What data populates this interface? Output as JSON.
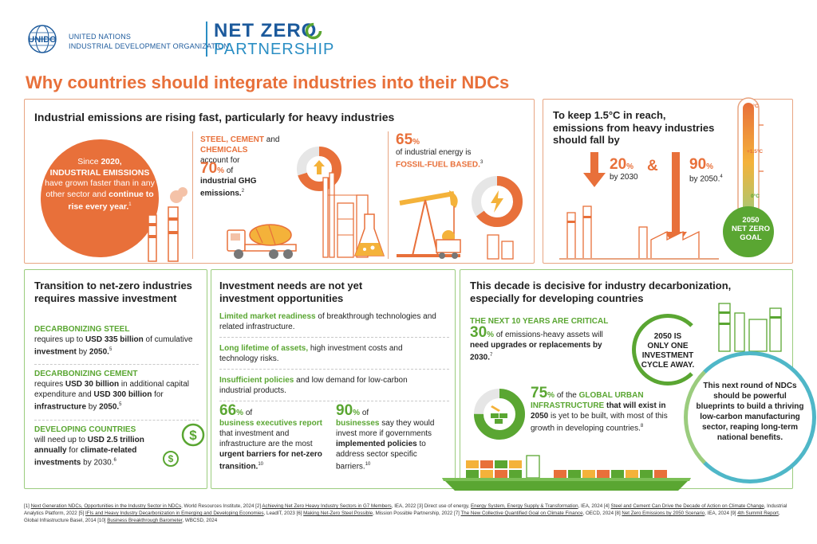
{
  "header": {
    "org_line1": "UNITED NATIONS",
    "org_line2": "INDUSTRIAL DEVELOPMENT ORGANIZATION",
    "unido_logo_text": "UNIDO",
    "partner_line1": "NET ZERO",
    "partner_line2": "PARTNERSHIP",
    "title": "Why countries should integrate industries into their NDCs"
  },
  "panel_emissions": {
    "title": "Industrial emissions are rising fast, particularly for heavy industries",
    "circle": {
      "t1": "Since ",
      "t2": "2020,",
      "t3": "INDUSTRIAL EMISSIONS",
      "t4": " have grown faster than in any other sector and ",
      "t5": "continue to rise every year.",
      "ref": "1"
    },
    "steel": {
      "s1": "STEEL, CEMENT",
      "s2": " and ",
      "s3": "CHEMICALS",
      "s4": "account for"
    },
    "seventy": {
      "num": "70",
      "pct": "%",
      "t1": " of",
      "t2": "industrial GHG emissions.",
      "ref": "2"
    },
    "sixtyfive": {
      "num": "65",
      "pct": "%",
      "t1": "of industrial energy is",
      "t2": "FOSSIL-FUEL BASED.",
      "ref": "3"
    }
  },
  "panel_fall": {
    "title_l1": "To keep 1.5°C in reach,",
    "title_l2": "emissions from heavy industries",
    "title_l3": "should fall by",
    "first": {
      "num": "20",
      "pct": "%",
      "by": "by 2030"
    },
    "amp": "&",
    "second": {
      "num": "90",
      "pct": "%",
      "by": "by 2050.",
      "ref": "4"
    },
    "thermo": {
      "label_top": "+3°C",
      "label_mid": "+1.5°C",
      "label_zero": "0°C",
      "goal_l1": "2050",
      "goal_l2": "NET ZERO",
      "goal_l3": "GOAL"
    }
  },
  "panel_transition": {
    "title": "Transition to net-zero industries requires massive investment",
    "steel": {
      "head": "DECARBONIZING STEEL",
      "t1": "requires up to ",
      "t2": "USD 335 billion",
      "t3": " of cumulative ",
      "t4": "investment",
      "t5": " by ",
      "t6": "2050.",
      "ref": "5"
    },
    "cement": {
      "head": "DECARBONIZING CEMENT",
      "t1": "requires ",
      "t2": "USD 30 billion",
      "t3": " in additional capital expenditure and ",
      "t4": "USD 300 billion",
      "t5": " for ",
      "t6": "infrastructure",
      "t7": " by ",
      "t8": "2050.",
      "ref": "5"
    },
    "developing": {
      "head": "DEVELOPING COUNTRIES",
      "t1": "will need up to ",
      "t2": "USD 2.5 trillion annually",
      "t3": " for ",
      "t4": "climate-related investments",
      "t5": " by 2030.",
      "ref": "6"
    }
  },
  "panel_investment": {
    "title_l1": "Investment needs are not yet",
    "title_l2": "investment opportunities",
    "item1": {
      "head": "Limited market readiness",
      "rest": " of breakthrough technologies and related infrastructure."
    },
    "item2": {
      "head": "Long lifetime of assets,",
      "rest": " high investment costs and technology risks."
    },
    "item3": {
      "head": "Insufficient policies",
      "rest": " and low demand for low-carbon industrial products."
    },
    "stat1": {
      "num": "66",
      "pct": "%",
      "t1": " of",
      "t2": "business executives report",
      "t3": " that investment and infrastructure are the most ",
      "t4": "urgent barriers for net-zero transition.",
      "ref": "10"
    },
    "stat2": {
      "num": "90",
      "pct": "%",
      "t1": " of",
      "t2": "businesses",
      "t3": " say they would invest more if governments ",
      "t4": "implemented policies",
      "t5": " to address sector specific barriers.",
      "ref": "10"
    }
  },
  "panel_decade": {
    "title_l1": "This decade is decisive for industry decarbonization,",
    "title_l2": "especially for developing countries",
    "critical": "THE NEXT 10 YEARS ARE CRITICAL",
    "thirty": {
      "num": "30",
      "pct": "%",
      "t1": " of emissions-heavy assets will ",
      "t2": "need upgrades or replacements by 2030.",
      "ref": "7"
    },
    "cycle": {
      "l1": "2050 IS",
      "l2": "ONLY ONE",
      "l3": "INVESTMENT",
      "l4": "CYCLE AWAY."
    },
    "seventyfive": {
      "num": "75",
      "pct": "%",
      "t1": " of the ",
      "t2": "GLOBAL URBAN INFRASTRUCTURE",
      "t3": " that will exist in 2050",
      "t4": " is yet to be built, with most of this growth in developing countries.",
      "ref": "8"
    },
    "ndc": "This next round of NDCs should be powerful blueprints to build a thriving low-carbon manufacturing sector, reaping long-term national benefits."
  },
  "footnotes": {
    "f1a": "[1] ",
    "f1b": "Next Generation NDCs, Opportunities in the Industry Sector in NDCs",
    "f1c": ", World Resources Institute, 2024 ",
    "f2a": "[2] ",
    "f2b": "Achieving Net Zero Heavy Industry Sectors in G7 Members",
    "f2c": ", IEA, 2022 ",
    "f3a": "[3] Direct use of energy, ",
    "f3b": "Energy System, Energy Supply & Transformation",
    "f3c": ", IEA, 2024 ",
    "f4a": "[4] ",
    "f4b": "Steel and Cement Can Drive the Decade of Action on Climate Change",
    "f4c": ", Industrial Analytics Platform, 2022 ",
    "f5a": "[5] ",
    "f5b": "IFIs and Heavy Industry Decarbonization in Emerging and Developing Economies",
    "f5c": ", LeadIT, 2023 ",
    "f6a": "[6] ",
    "f6b": "Making Net-Zero Steel Possible",
    "f6c": ", Mission Possible Partnership, 2022 ",
    "f7a": "[7] ",
    "f7b": "The New Collective Quantified Goal on Climate Finance",
    "f7c": ", OECD, 2024 ",
    "f8a": "[8] ",
    "f8b": "Net Zero Emissions by 2050 Scenario",
    "f8c": ", IEA, 2024 ",
    "f9a": "[9] ",
    "f9b": "4th Summit Report",
    "f9c": ", Global Infrastructure Basel, 2014 ",
    "f10a": "[10] ",
    "f10b": "Business Breakthrough Barometer",
    "f10c": ", WBCSD, 2024"
  },
  "colors": {
    "orange": "#e8703a",
    "green": "#5aa632",
    "blue": "#1c5a9c",
    "teal": "#4fb7c8"
  },
  "icons": [
    "unido-emblem-icon",
    "factory-icon",
    "donut-chart-icon",
    "cement-truck-icon",
    "refinery-icon",
    "flask-icon",
    "oil-pump-icon",
    "mine-cart-icon",
    "lightning-icon",
    "down-arrow-icon",
    "thermometer-icon",
    "dollar-coin-icon",
    "bricks-icon",
    "cargo-ship-icon",
    "power-plant-icon"
  ]
}
